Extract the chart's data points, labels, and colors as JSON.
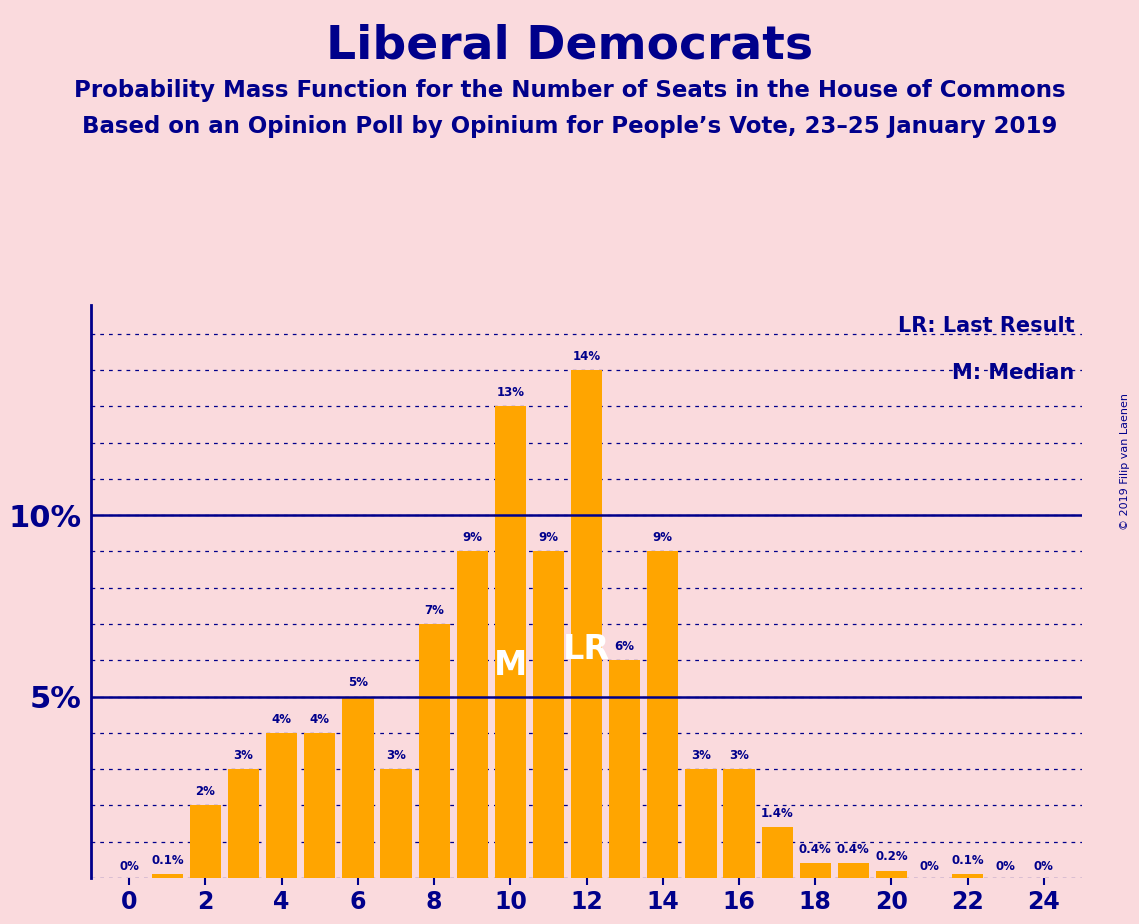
{
  "title": "Liberal Democrats",
  "subtitle1": "Probability Mass Function for the Number of Seats in the House of Commons",
  "subtitle2": "Based on an Opinion Poll by Opinium for People’s Vote, 23–25 January 2019",
  "copyright": "© 2019 Filip van Laenen",
  "bar_color": "#FFA500",
  "background_color": "#FADADD",
  "title_color": "#00008B",
  "axis_color": "#00008B",
  "grid_color": "#00008B",
  "label_color": "#00008B",
  "seats": [
    0,
    1,
    2,
    3,
    4,
    5,
    6,
    7,
    8,
    9,
    10,
    11,
    12,
    13,
    14,
    15,
    16,
    17,
    18,
    19,
    20,
    21,
    22,
    23,
    24
  ],
  "probabilities": [
    0.0,
    0.1,
    2.0,
    3.0,
    4.0,
    4.0,
    5.0,
    3.0,
    7.0,
    9.0,
    13.0,
    9.0,
    14.0,
    6.0,
    9.0,
    3.0,
    3.0,
    1.4,
    0.4,
    0.4,
    0.2,
    0.0,
    0.1,
    0.0,
    0.0
  ],
  "labels": [
    "0%",
    "0.1%",
    "2%",
    "3%",
    "4%",
    "4%",
    "5%",
    "3%",
    "7%",
    "9%",
    "13%",
    "9%",
    "14%",
    "6%",
    "9%",
    "3%",
    "3%",
    "1.4%",
    "0.4%",
    "0.4%",
    "0.2%",
    "0%",
    "0.1%",
    "0%",
    "0%"
  ],
  "median_seat": 10,
  "last_result_seat": 12,
  "legend_lr": "LR: Last Result",
  "legend_m": "M: Median",
  "xticks": [
    0,
    2,
    4,
    6,
    8,
    10,
    12,
    14,
    16,
    18,
    20,
    22,
    24
  ],
  "ylim": [
    0,
    15.8
  ],
  "figsize": [
    11.39,
    9.24
  ]
}
